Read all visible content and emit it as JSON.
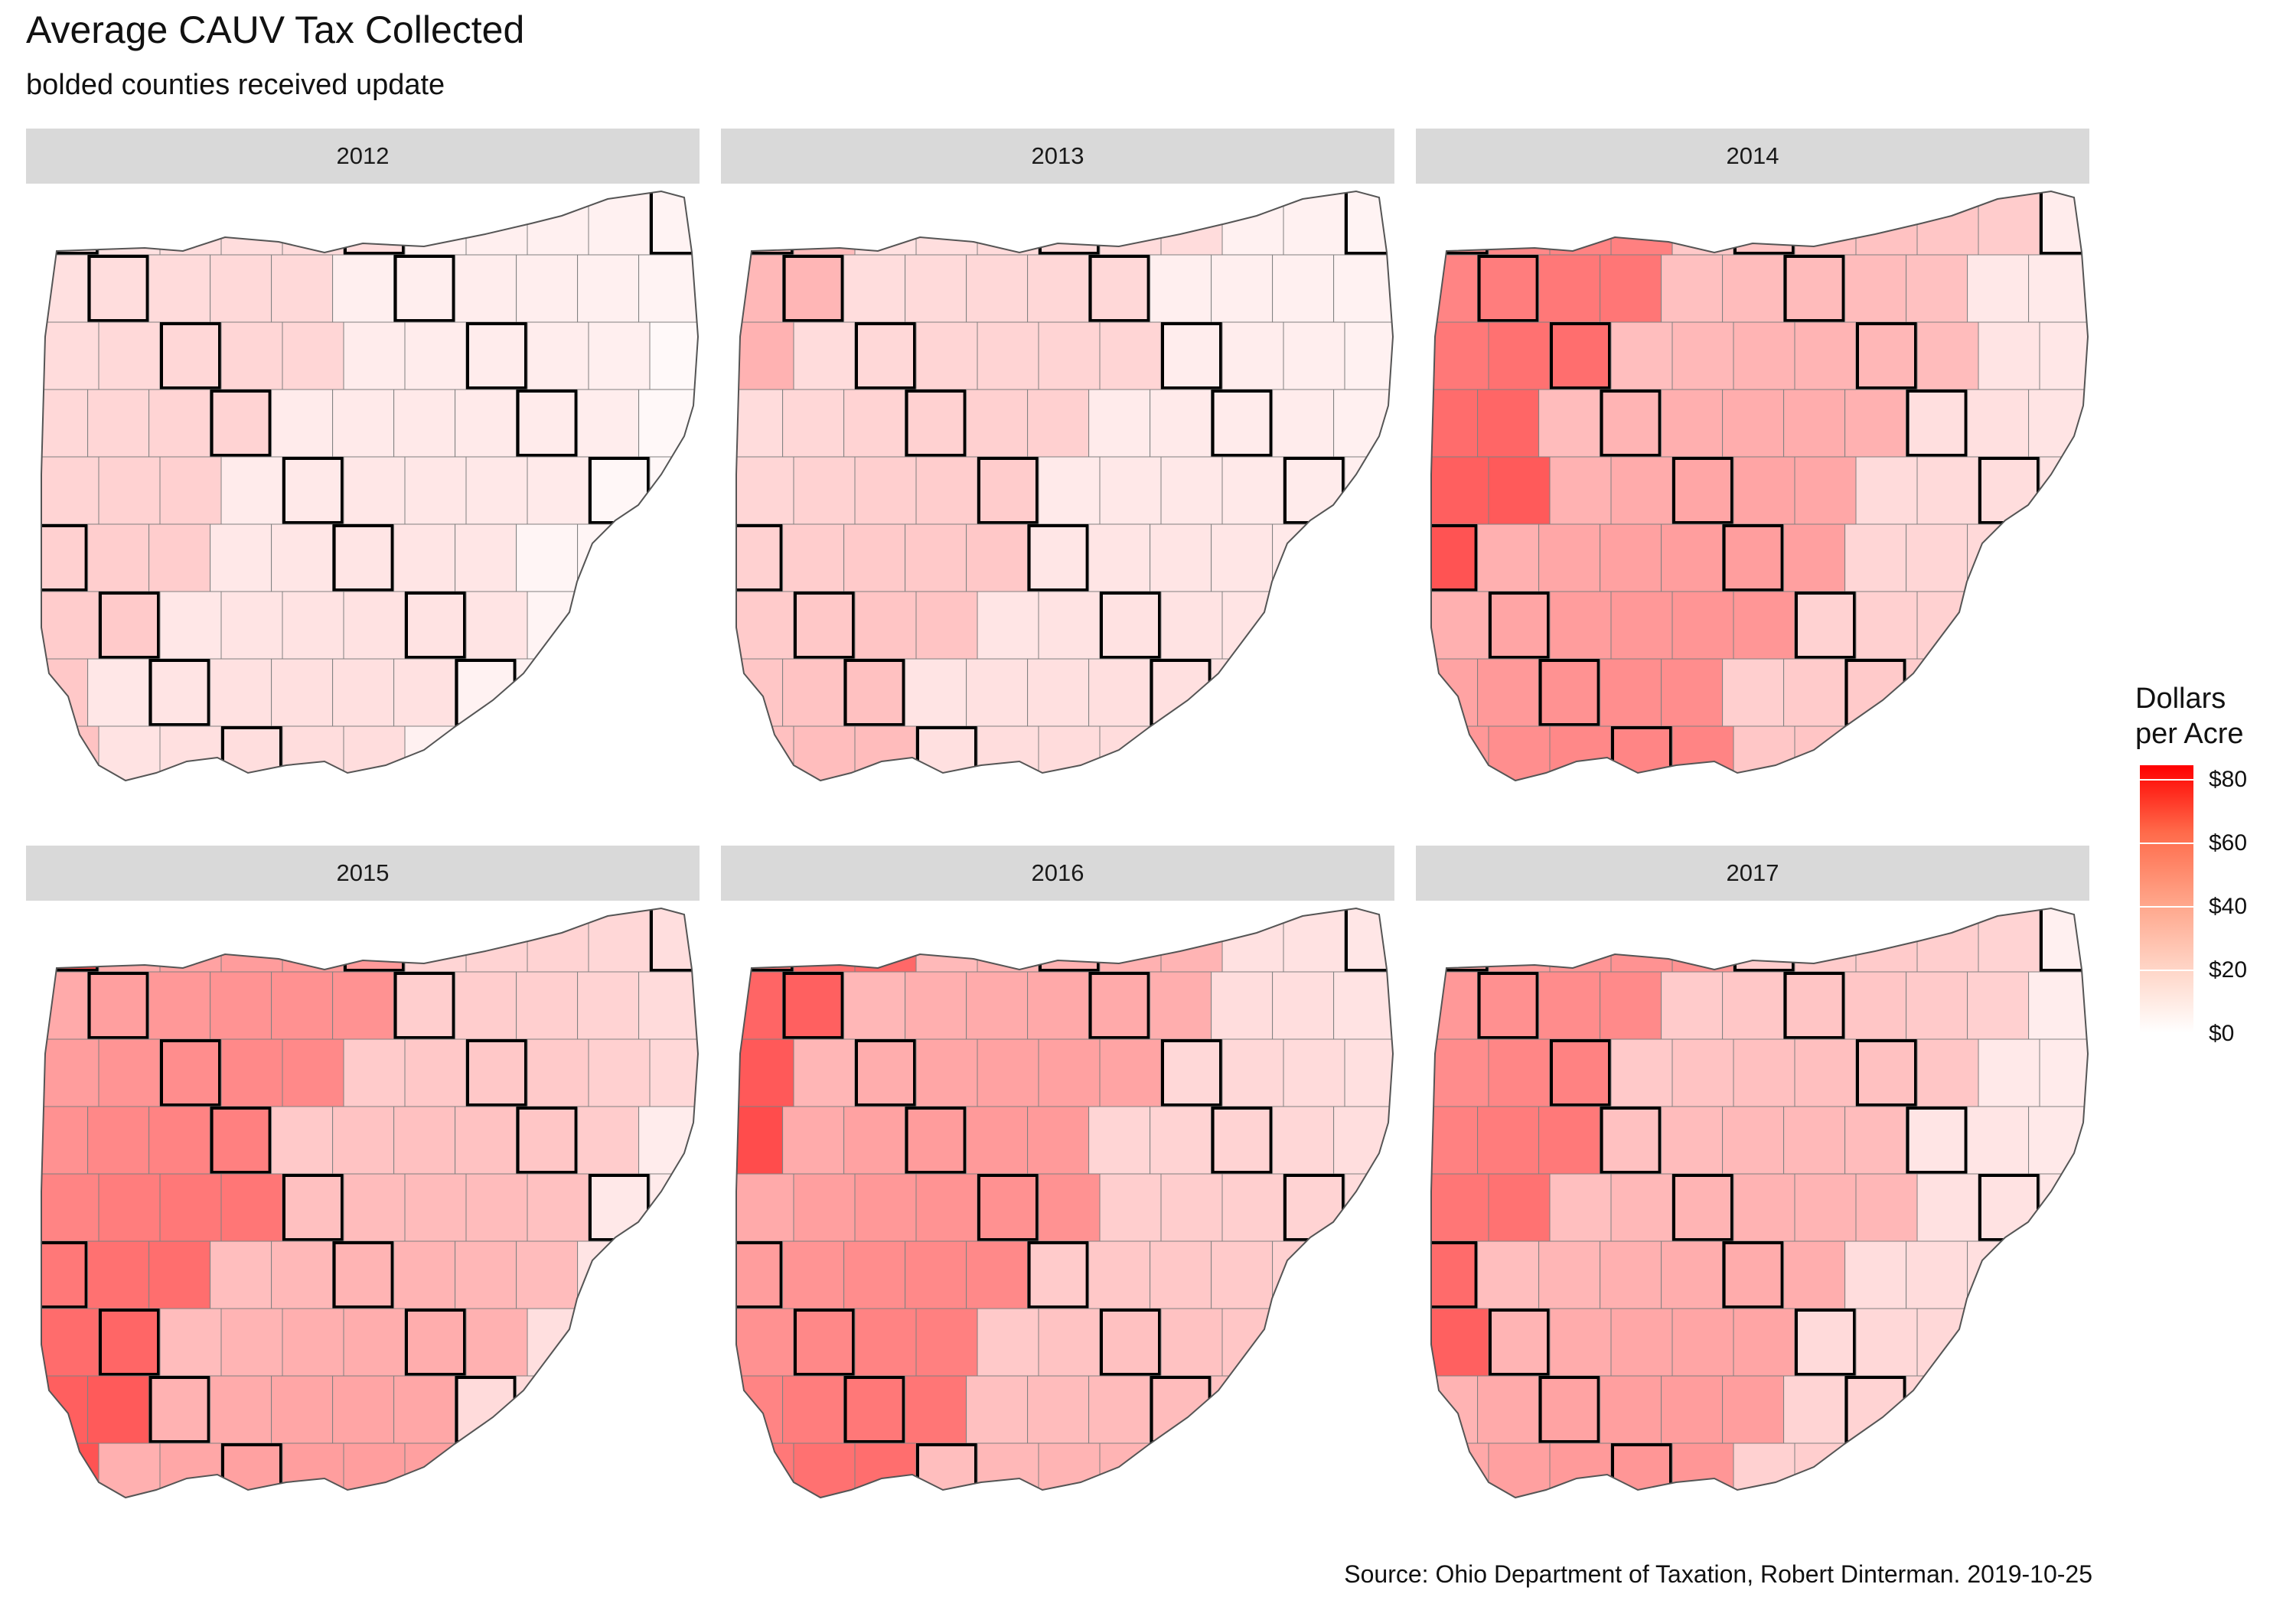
{
  "title": "Average CAUV Tax Collected",
  "subtitle": "bolded counties received update",
  "caption": "Source: Ohio Department of Taxation, Robert Dinterman. 2019-10-25",
  "legend": {
    "title_line1": "Dollars",
    "title_line2": "per Acre",
    "ticks": [
      "$80",
      "$60",
      "$40",
      "$20",
      "$0"
    ],
    "tick_values": [
      80,
      60,
      40,
      20,
      0
    ],
    "range": [
      0,
      80
    ],
    "low_color": "#ffffff",
    "high_color": "#ff0000"
  },
  "colors": {
    "strip_background": "#d9d9d9",
    "low": "#ffffff",
    "high": "#ff0000",
    "border_thin": "#808080",
    "border_bold": "#000000"
  },
  "panels": [
    {
      "year": "2012",
      "level": 0.15
    },
    {
      "year": "2013",
      "level": 0.2
    },
    {
      "year": "2014",
      "level": 0.45
    },
    {
      "year": "2015",
      "level": 0.45
    },
    {
      "year": "2016",
      "level": 0.45
    },
    {
      "year": "2017",
      "level": 0.4
    }
  ]
}
